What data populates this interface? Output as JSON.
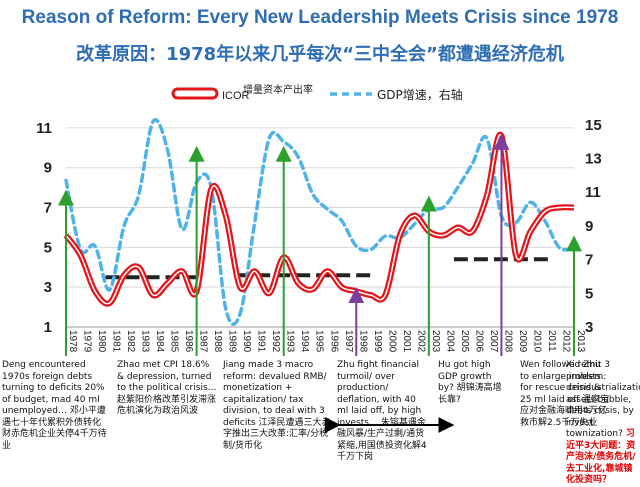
{
  "title_en": "Reason of Reform: Every New Leadership Meets Crisis since 1978",
  "title_cn": "改革原因：1978年以来几乎每次“三中全会”都遭遇经济危机",
  "colors": {
    "title": "#2e6db4",
    "icor": "#e3151b",
    "gdp": "#4fb3e8",
    "arrow_green": "#2ca02c",
    "arrow_purple": "#7b3fa0",
    "trend": "#222222"
  },
  "chart_data": {
    "type": "line",
    "x": [
      1978,
      1979,
      1980,
      1981,
      1982,
      1983,
      1984,
      1985,
      1986,
      1987,
      1988,
      1989,
      1990,
      1991,
      1992,
      1993,
      1994,
      1995,
      1996,
      1997,
      1998,
      1999,
      2000,
      2001,
      2002,
      2003,
      2004,
      2005,
      2006,
      2007,
      2008,
      2009,
      2010,
      2011,
      2012,
      2013
    ],
    "x_tick_labels": [
      "1978",
      "1979",
      "1980",
      "1981",
      "1982",
      "1983",
      "1984",
      "1985",
      "1986",
      "1987",
      "1988",
      "1989",
      "1990",
      "1991",
      "1992",
      "1993",
      "1994",
      "1995",
      "1996",
      "1997",
      "1998",
      "1999",
      "2000",
      "2001",
      "2002",
      "2003",
      "2004",
      "2005",
      "2006",
      "2007",
      "2008",
      "2009",
      "2010",
      "2011",
      "2012",
      "2013"
    ],
    "series": [
      {
        "name": "ICOR",
        "axis": "left",
        "style": "solid-red",
        "values": [
          5.6,
          4.6,
          2.8,
          2.2,
          3.6,
          4.0,
          2.6,
          3.2,
          3.8,
          2.8,
          7.9,
          6.6,
          3.0,
          3.8,
          2.7,
          4.5,
          3.2,
          2.9,
          3.8,
          3.0,
          2.8,
          2.6,
          2.6,
          5.6,
          6.6,
          5.8,
          5.6,
          6.0,
          5.8,
          7.6,
          10.6,
          4.6,
          5.8,
          6.8,
          7.0,
          7.0
        ]
      },
      {
        "name": "GDP增速，右轴",
        "axis": "right",
        "style": "dashed-blue",
        "values": [
          11.7,
          7.6,
          7.8,
          5.2,
          9.0,
          10.8,
          15.2,
          13.5,
          8.8,
          11.6,
          11.3,
          4.1,
          3.8,
          9.2,
          14.2,
          14.0,
          13.1,
          10.9,
          10.0,
          9.3,
          7.8,
          7.6,
          8.4,
          8.3,
          9.1,
          10.0,
          10.1,
          11.3,
          12.7,
          14.2,
          9.6,
          9.2,
          10.4,
          9.3,
          7.7,
          7.7
        ]
      }
    ],
    "legend": [
      "ICOR",
      "增量资本产出率",
      "GDP增速，右轴"
    ],
    "y_left": {
      "min": 1,
      "max": 12,
      "ticks": [
        1,
        3,
        5,
        7,
        9,
        11
      ]
    },
    "y_right": {
      "min": 3,
      "max": 16,
      "ticks": [
        3,
        5,
        7,
        9,
        11,
        13,
        15
      ]
    },
    "trend_lines": [
      {
        "from": 1981,
        "to": 1987,
        "value": 3.5
      },
      {
        "from": 1990,
        "to": 1999,
        "value": 3.6
      },
      {
        "from": 2005,
        "to": 2011,
        "value": 4.4
      }
    ],
    "arrows": [
      {
        "x": 1978,
        "from": 1,
        "to": 7.5,
        "color": "green"
      },
      {
        "x": 1987,
        "from": 1,
        "to": 9.7,
        "color": "green"
      },
      {
        "x": 1993,
        "from": 1,
        "to": 9.7,
        "color": "green"
      },
      {
        "x": 1998,
        "from": 1,
        "to": 2.6,
        "color": "purple"
      },
      {
        "x": 2003,
        "from": 1,
        "to": 7.2,
        "color": "green"
      },
      {
        "x": 2008,
        "from": 1,
        "to": 10.3,
        "color": "purple"
      },
      {
        "x": 2013,
        "from": 1,
        "to": 5.2,
        "color": "green"
      }
    ],
    "double_arrow": {
      "from": 1995,
      "to": 2002
    }
  },
  "notes": [
    {
      "text": "Deng encountered 1970s foreign debts turning to deficits 20% of  budget, mad 40 ml unemployed…  邓小平遭遇七十年代累积外债转化财赤危机企业关停4千万待业",
      "red": ""
    },
    {
      "text": "Zhao met CPI 18.6% & depression, turned to the political crisis… 赵紫阳价格改革引发滞涨危机演化为政治风波",
      "red": ""
    },
    {
      "text": "Jiang made 3 macro reform: devalued RMB/ monetization + capitalization/ tax division, to deal with 3 deficits 江泽民遭遇三大赤字推出三大改革:汇率/分税制/货币化",
      "red": ""
    },
    {
      "text": "Zhu fight financial turmoil/ over production/ deflation, with 40 ml laid off, by high invests… 朱镕基遇金融风暴/生产过剩/通货紧缩,用国债投资化解4千万下岗",
      "red": ""
    },
    {
      "text": "Hu got high GDP growth by? 胡锦涛高增长靠?",
      "red": ""
    },
    {
      "text": "Wen followed Zhu to enlarge invests for rescue crisis & 25 ml laid off 温家宝应对金融海啸用4万亿救市解2.5千万失业",
      "red": ""
    },
    {
      "text": "Xi remit 3 problem: deindustrialization, assets bubble, debts crisis, by invest townization? ",
      "red": "习近平3大问题：资产泡沫/债务危机/去工业化,靠城镇化投资吗？"
    }
  ]
}
